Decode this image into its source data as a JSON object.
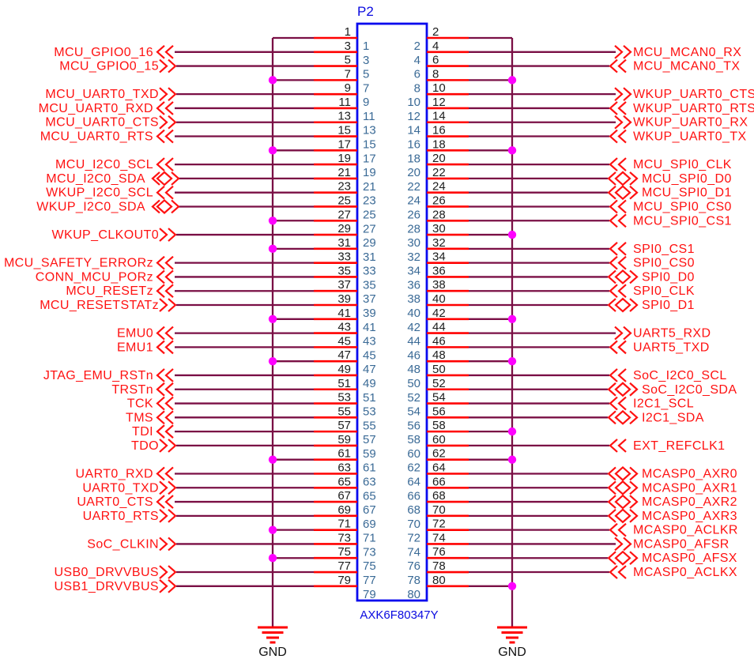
{
  "connector": {
    "refdes": "P2",
    "part_number": "AXK6F80347Y",
    "pin_count": 80
  },
  "gnd_label": "GND",
  "colors": {
    "wire": "#7a0f45",
    "pin_stub": "#ff0000",
    "net_label": "#ff1111",
    "connector_outline": "#0a0aee",
    "inside_pin_number": "#3a6a96",
    "outside_pin_number": "#1c1c1c",
    "junction_dot": "#ff00ff",
    "ground_bars": "#ff0000",
    "background": "#ffffff"
  },
  "legend": {
    "arrow_meaning": {
      "<<": "left-pointing double chevron",
      ">>": "right-pointing double chevron",
      "<>": "bidirectional diamond with chevrons"
    }
  },
  "pins": {
    "left": [
      {
        "pin": 1,
        "net": "GND",
        "gnd": true
      },
      {
        "pin": 3,
        "net": "MCU_GPIO0_16",
        "arrow": "<<"
      },
      {
        "pin": 5,
        "net": "MCU_GPIO0_15",
        "arrow": ">>"
      },
      {
        "pin": 7,
        "net": "GND",
        "gnd": true
      },
      {
        "pin": 9,
        "net": "MCU_UART0_TXD",
        "arrow": ">>"
      },
      {
        "pin": 11,
        "net": "MCU_UART0_RXD",
        "arrow": "<<"
      },
      {
        "pin": 13,
        "net": "MCU_UART0_CTS",
        "arrow": ">>"
      },
      {
        "pin": 15,
        "net": "MCU_UART0_RTS",
        "arrow": "<<"
      },
      {
        "pin": 17,
        "net": "GND",
        "gnd": true
      },
      {
        "pin": 19,
        "net": "MCU_I2C0_SCL",
        "arrow": "<<"
      },
      {
        "pin": 21,
        "net": "MCU_I2C0_SDA",
        "arrow": "<>"
      },
      {
        "pin": 23,
        "net": "WKUP_I2C0_SCL",
        "arrow": "<<"
      },
      {
        "pin": 25,
        "net": "WKUP_I2C0_SDA",
        "arrow": "<>"
      },
      {
        "pin": 27,
        "net": "GND",
        "gnd": true
      },
      {
        "pin": 29,
        "net": "WKUP_CLKOUT0",
        "arrow": ">>"
      },
      {
        "pin": 31,
        "net": "GND",
        "gnd": true
      },
      {
        "pin": 33,
        "net": "MCU_SAFETY_ERRORz",
        "arrow": "<<"
      },
      {
        "pin": 35,
        "net": "CONN_MCU_PORz",
        "arrow": "<<"
      },
      {
        "pin": 37,
        "net": "MCU_RESETz",
        "arrow": "<<"
      },
      {
        "pin": 39,
        "net": "MCU_RESETSTATz",
        "arrow": ">>"
      },
      {
        "pin": 41,
        "net": "GND",
        "gnd": true
      },
      {
        "pin": 43,
        "net": "EMU0",
        "arrow": "<<"
      },
      {
        "pin": 45,
        "net": "EMU1",
        "arrow": "<<"
      },
      {
        "pin": 47,
        "net": "GND",
        "gnd": true
      },
      {
        "pin": 49,
        "net": "JTAG_EMU_RSTn",
        "arrow": "<<"
      },
      {
        "pin": 51,
        "net": "TRSTn",
        "arrow": "<<"
      },
      {
        "pin": 53,
        "net": "TCK",
        "arrow": "<<"
      },
      {
        "pin": 55,
        "net": "TMS",
        "arrow": "<<"
      },
      {
        "pin": 57,
        "net": "TDI",
        "arrow": "<<"
      },
      {
        "pin": 59,
        "net": "TDO",
        "arrow": ">>"
      },
      {
        "pin": 61,
        "net": "GND",
        "gnd": true
      },
      {
        "pin": 63,
        "net": "UART0_RXD",
        "arrow": "<<"
      },
      {
        "pin": 65,
        "net": "UART0_TXD",
        "arrow": ">>"
      },
      {
        "pin": 67,
        "net": "UART0_CTS",
        "arrow": "<<"
      },
      {
        "pin": 69,
        "net": "UART0_RTS",
        "arrow": ">>"
      },
      {
        "pin": 71,
        "net": "GND",
        "gnd": true
      },
      {
        "pin": 73,
        "net": "SoC_CLKIN",
        "arrow": ">>"
      },
      {
        "pin": 75,
        "net": "GND",
        "gnd": true
      },
      {
        "pin": 77,
        "net": "USB0_DRVVBUS",
        "arrow": ">>"
      },
      {
        "pin": 79,
        "net": "USB1_DRVVBUS",
        "arrow": ">>"
      }
    ],
    "right": [
      {
        "pin": 2,
        "net": "GND",
        "gnd": true
      },
      {
        "pin": 4,
        "net": "MCU_MCAN0_RX",
        "arrow": ">>"
      },
      {
        "pin": 6,
        "net": "MCU_MCAN0_TX",
        "arrow": "<<"
      },
      {
        "pin": 8,
        "net": "GND",
        "gnd": true
      },
      {
        "pin": 10,
        "net": "WKUP_UART0_CTS",
        "arrow": ">>"
      },
      {
        "pin": 12,
        "net": "WKUP_UART0_RTS",
        "arrow": "<<"
      },
      {
        "pin": 14,
        "net": "WKUP_UART0_RX",
        "arrow": ">>"
      },
      {
        "pin": 16,
        "net": "WKUP_UART0_TX",
        "arrow": "<<"
      },
      {
        "pin": 18,
        "net": "GND",
        "gnd": true
      },
      {
        "pin": 20,
        "net": "MCU_SPI0_CLK",
        "arrow": "<<"
      },
      {
        "pin": 22,
        "net": "MCU_SPI0_D0",
        "arrow": "<>"
      },
      {
        "pin": 24,
        "net": "MCU_SPI0_D1",
        "arrow": "<>"
      },
      {
        "pin": 26,
        "net": "MCU_SPI0_CS0",
        "arrow": "<<"
      },
      {
        "pin": 28,
        "net": "MCU_SPI0_CS1",
        "arrow": "<<"
      },
      {
        "pin": 30,
        "net": "GND",
        "gnd": true
      },
      {
        "pin": 32,
        "net": "SPI0_CS1",
        "arrow": "<<"
      },
      {
        "pin": 34,
        "net": "SPI0_CS0",
        "arrow": "<<"
      },
      {
        "pin": 36,
        "net": "SPI0_D0",
        "arrow": "<>"
      },
      {
        "pin": 38,
        "net": "SPI0_CLK",
        "arrow": "<<"
      },
      {
        "pin": 40,
        "net": "SPI0_D1",
        "arrow": "<>"
      },
      {
        "pin": 42,
        "net": "GND",
        "gnd": true
      },
      {
        "pin": 44,
        "net": "UART5_RXD",
        "arrow": ">>"
      },
      {
        "pin": 46,
        "net": "UART5_TXD",
        "arrow": "<<"
      },
      {
        "pin": 48,
        "net": "GND",
        "gnd": true
      },
      {
        "pin": 50,
        "net": "SoC_I2C0_SCL",
        "arrow": "<<"
      },
      {
        "pin": 52,
        "net": "SoC_I2C0_SDA",
        "arrow": "<>"
      },
      {
        "pin": 54,
        "net": "I2C1_SCL",
        "arrow": "<<"
      },
      {
        "pin": 56,
        "net": "I2C1_SDA",
        "arrow": "<>"
      },
      {
        "pin": 58,
        "net": "GND",
        "gnd": true
      },
      {
        "pin": 60,
        "net": "EXT_REFCLK1",
        "arrow": "<<"
      },
      {
        "pin": 62,
        "net": "GND",
        "gnd": true
      },
      {
        "pin": 64,
        "net": "MCASP0_AXR0",
        "arrow": "<>"
      },
      {
        "pin": 66,
        "net": "MCASP0_AXR1",
        "arrow": "<>"
      },
      {
        "pin": 68,
        "net": "MCASP0_AXR2",
        "arrow": "<>"
      },
      {
        "pin": 70,
        "net": "MCASP0_AXR3",
        "arrow": "<>"
      },
      {
        "pin": 72,
        "net": "MCASP0_ACLKR",
        "arrow": "<<"
      },
      {
        "pin": 74,
        "net": "MCASP0_AFSR",
        "arrow": ">>"
      },
      {
        "pin": 76,
        "net": "MCASP0_AFSX",
        "arrow": "<>"
      },
      {
        "pin": 78,
        "net": "MCASP0_ACLKX",
        "arrow": "<<"
      },
      {
        "pin": 80,
        "net": "GND",
        "gnd": true
      }
    ]
  }
}
